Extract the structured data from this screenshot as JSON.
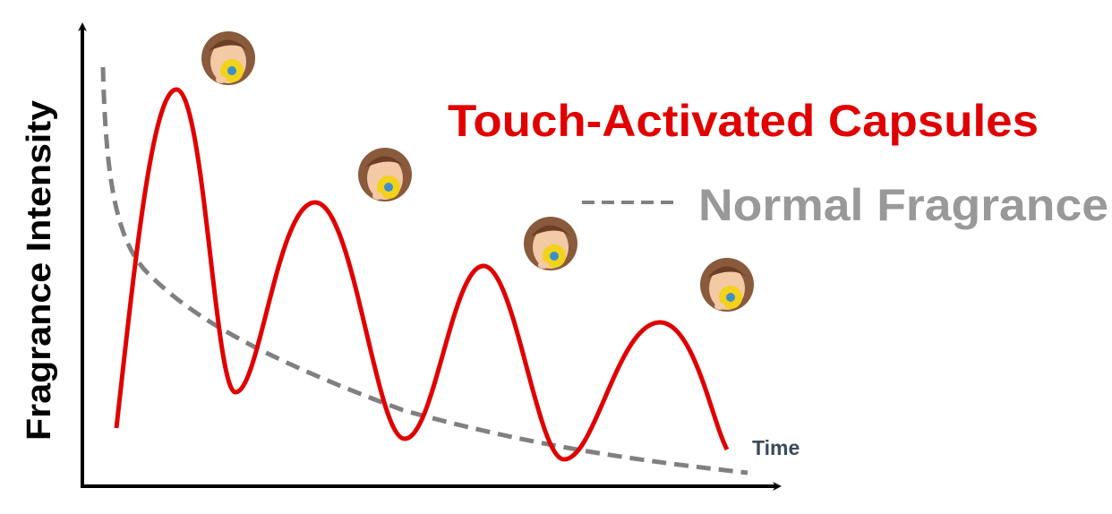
{
  "y_axis_label": "Fragrance Intensity",
  "x_axis_label": "Time",
  "legend": {
    "touch": "Touch-Activated Capsules",
    "normal": "Normal Fragrance"
  }
}
